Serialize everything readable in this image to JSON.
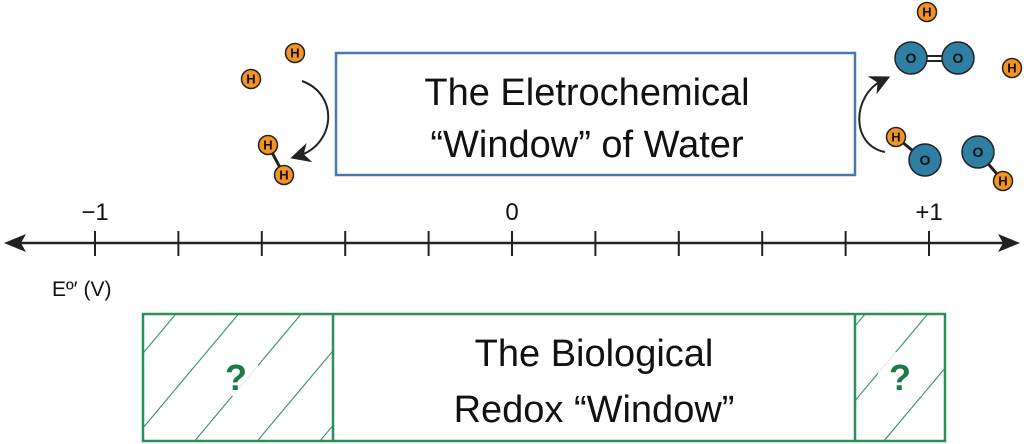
{
  "water_box": {
    "line1": "The Eletrochemical",
    "line2": "“Window” of Water",
    "color": "#4a78ad"
  },
  "axis": {
    "ticks": [
      "−1",
      "",
      "",
      "",
      "",
      "0",
      "",
      "",
      "",
      "",
      "+1"
    ],
    "label": "Eº′ (V)"
  },
  "bio_box": {
    "line1": "The Biological",
    "line2": "Redox “Window”",
    "unknown_left": "?",
    "unknown_right": "?",
    "color": "#2f8f5b"
  },
  "atoms": {
    "hydrogen": "H",
    "oxygen": "O",
    "hydrogen_color": "#f39422",
    "oxygen_color": "#2f7fa5"
  }
}
